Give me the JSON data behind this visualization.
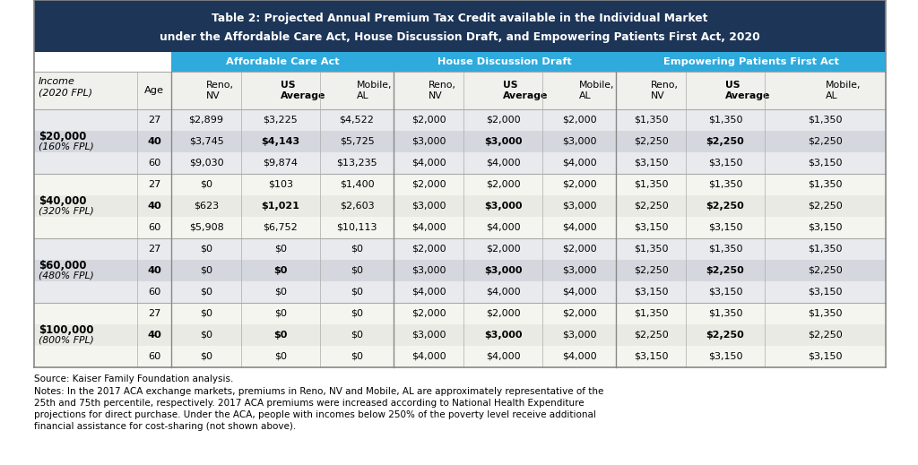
{
  "title_line1": "Table 2: Projected Annual Premium Tax Credit available in the Individual Market",
  "title_line2": "under the Affordable Care Act, House Discussion Draft, and Empowering Patients First Act, 2020",
  "title_bg": "#1d3557",
  "title_color": "#ffffff",
  "group_headers": [
    "Affordable Care Act",
    "House Discussion Draft",
    "Empowering Patients First Act"
  ],
  "group_header_color": "#2eaadc",
  "col_headers": [
    "Reno,\nNV",
    "US\nAverage",
    "Mobile,\nAL",
    "Reno,\nNV",
    "US\nAverage",
    "Mobile,\nAL",
    "Reno,\nNV",
    "US\nAverage",
    "Mobile,\nAL"
  ],
  "rows": [
    {
      "income_label": "$20,000",
      "fpl_label": "(160% FPL)",
      "age": 27,
      "bold_row": false,
      "values": [
        "$2,899",
        "$3,225",
        "$4,522",
        "$2,000",
        "$2,000",
        "$2,000",
        "$1,350",
        "$1,350",
        "$1,350"
      ],
      "bold_cols": []
    },
    {
      "income_label": "",
      "fpl_label": "",
      "age": 40,
      "bold_row": true,
      "values": [
        "$3,745",
        "$4,143",
        "$5,725",
        "$3,000",
        "$3,000",
        "$3,000",
        "$2,250",
        "$2,250",
        "$2,250"
      ],
      "bold_cols": [
        1,
        4,
        7
      ]
    },
    {
      "income_label": "",
      "fpl_label": "",
      "age": 60,
      "bold_row": false,
      "values": [
        "$9,030",
        "$9,874",
        "$13,235",
        "$4,000",
        "$4,000",
        "$4,000",
        "$3,150",
        "$3,150",
        "$3,150"
      ],
      "bold_cols": []
    },
    {
      "income_label": "$40,000",
      "fpl_label": "(320% FPL)",
      "age": 27,
      "bold_row": false,
      "values": [
        "$0",
        "$103",
        "$1,400",
        "$2,000",
        "$2,000",
        "$2,000",
        "$1,350",
        "$1,350",
        "$1,350"
      ],
      "bold_cols": []
    },
    {
      "income_label": "",
      "fpl_label": "",
      "age": 40,
      "bold_row": true,
      "values": [
        "$623",
        "$1,021",
        "$2,603",
        "$3,000",
        "$3,000",
        "$3,000",
        "$2,250",
        "$2,250",
        "$2,250"
      ],
      "bold_cols": [
        1,
        4,
        7
      ]
    },
    {
      "income_label": "",
      "fpl_label": "",
      "age": 60,
      "bold_row": false,
      "values": [
        "$5,908",
        "$6,752",
        "$10,113",
        "$4,000",
        "$4,000",
        "$4,000",
        "$3,150",
        "$3,150",
        "$3,150"
      ],
      "bold_cols": []
    },
    {
      "income_label": "$60,000",
      "fpl_label": "(480% FPL)",
      "age": 27,
      "bold_row": false,
      "values": [
        "$0",
        "$0",
        "$0",
        "$2,000",
        "$2,000",
        "$2,000",
        "$1,350",
        "$1,350",
        "$1,350"
      ],
      "bold_cols": []
    },
    {
      "income_label": "",
      "fpl_label": "",
      "age": 40,
      "bold_row": true,
      "values": [
        "$0",
        "$0",
        "$0",
        "$3,000",
        "$3,000",
        "$3,000",
        "$2,250",
        "$2,250",
        "$2,250"
      ],
      "bold_cols": [
        1,
        4,
        7
      ]
    },
    {
      "income_label": "",
      "fpl_label": "",
      "age": 60,
      "bold_row": false,
      "values": [
        "$0",
        "$0",
        "$0",
        "$4,000",
        "$4,000",
        "$4,000",
        "$3,150",
        "$3,150",
        "$3,150"
      ],
      "bold_cols": []
    },
    {
      "income_label": "$100,000",
      "fpl_label": "(800% FPL)",
      "age": 27,
      "bold_row": false,
      "values": [
        "$0",
        "$0",
        "$0",
        "$2,000",
        "$2,000",
        "$2,000",
        "$1,350",
        "$1,350",
        "$1,350"
      ],
      "bold_cols": []
    },
    {
      "income_label": "",
      "fpl_label": "",
      "age": 40,
      "bold_row": true,
      "values": [
        "$0",
        "$0",
        "$0",
        "$3,000",
        "$3,000",
        "$3,000",
        "$2,250",
        "$2,250",
        "$2,250"
      ],
      "bold_cols": [
        1,
        4,
        7
      ]
    },
    {
      "income_label": "",
      "fpl_label": "",
      "age": 60,
      "bold_row": false,
      "values": [
        "$0",
        "$0",
        "$0",
        "$4,000",
        "$4,000",
        "$4,000",
        "$3,150",
        "$3,150",
        "$3,150"
      ],
      "bold_cols": []
    }
  ],
  "source_text": "Source: Kaiser Family Foundation analysis.",
  "notes_text": "Notes: In the 2017 ACA exchange markets, premiums in Reno, NV and Mobile, AL are approximately representative of the\n25th and 75th percentile, respectively. 2017 ACA premiums were increased according to National Health Expenditure\nprojections for direct purchase. Under the ACA, people with incomes below 250% of the poverty level receive additional\nfinancial assistance for cost-sharing (not shown above).",
  "outer_border_color": "#888888",
  "divider_color": "#aaaaaa",
  "shaded_color": "#e8eaed",
  "bold_shaded_color": "#d4d8de",
  "white_color": "#f5f5f0",
  "bold_white_color": "#eaeae5"
}
